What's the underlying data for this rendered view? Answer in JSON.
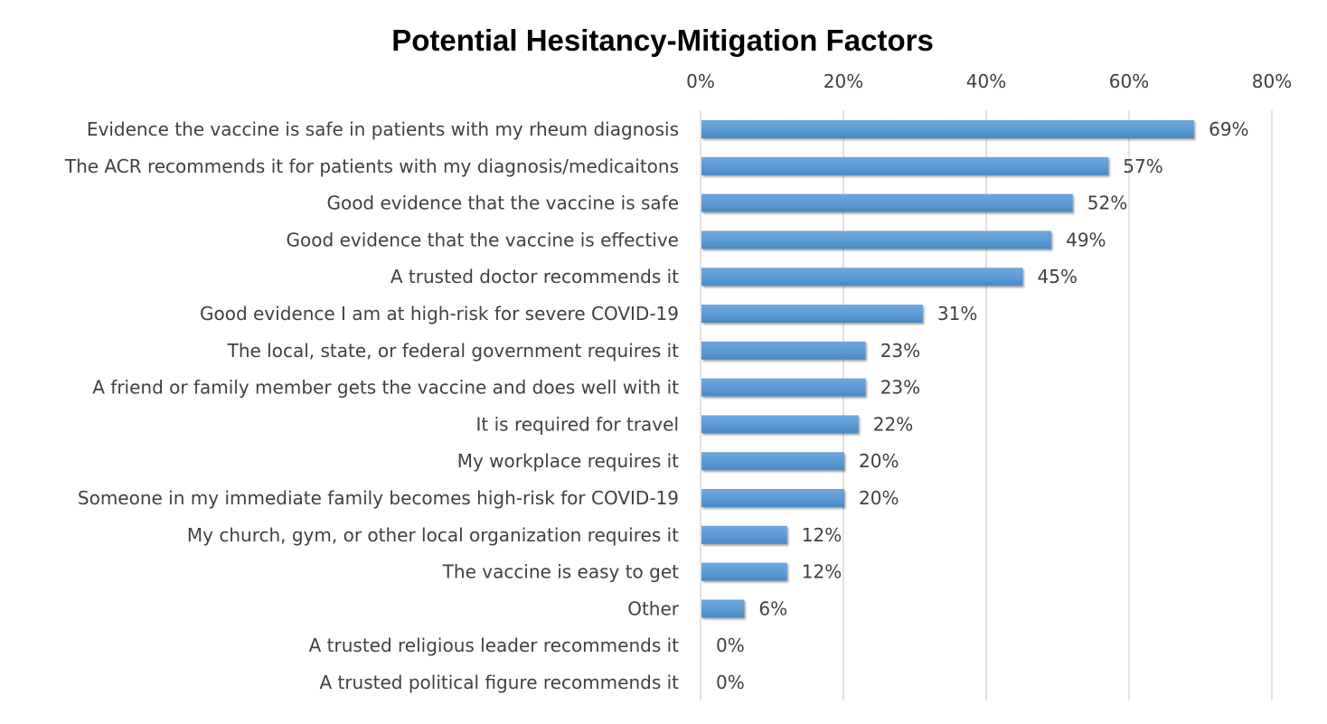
{
  "chart_data": {
    "type": "bar",
    "orientation": "horizontal",
    "title": "Potential Hesitancy-Mitigation Factors",
    "xlabel": "",
    "ylabel": "",
    "xlim": [
      0,
      80
    ],
    "x_ticks": [
      "0%",
      "20%",
      "40%",
      "60%",
      "80%"
    ],
    "x_tick_values": [
      0,
      20,
      40,
      60,
      80
    ],
    "x_axis_position": "top",
    "grid": true,
    "legend": "none",
    "bar_color": "#5b9bd5",
    "categories": [
      "Evidence the vaccine is safe in patients with my rheum diagnosis",
      "The ACR recommends it for patients with my diagnosis/medicaitons",
      "Good evidence that the vaccine is safe",
      "Good evidence that the vaccine is effective",
      "A trusted doctor recommends it",
      "Good evidence I am at high-risk for severe COVID-19",
      "The local, state, or federal government requires it",
      "A friend or family member gets the vaccine and does well with it",
      "It is required for travel",
      "My workplace requires it",
      "Someone in my immediate family becomes high-risk for COVID-19",
      "My church, gym, or other local organization requires it",
      "The vaccine is easy to get",
      "Other",
      "A trusted religious leader recommends it",
      "A trusted political figure recommends it"
    ],
    "values": [
      69,
      57,
      52,
      49,
      45,
      31,
      23,
      23,
      22,
      20,
      20,
      12,
      12,
      6,
      0,
      0
    ],
    "data_labels": [
      "69%",
      "57%",
      "52%",
      "49%",
      "45%",
      "31%",
      "23%",
      "23%",
      "22%",
      "20%",
      "20%",
      "12%",
      "12%",
      "6%",
      "0%",
      "0%"
    ]
  }
}
